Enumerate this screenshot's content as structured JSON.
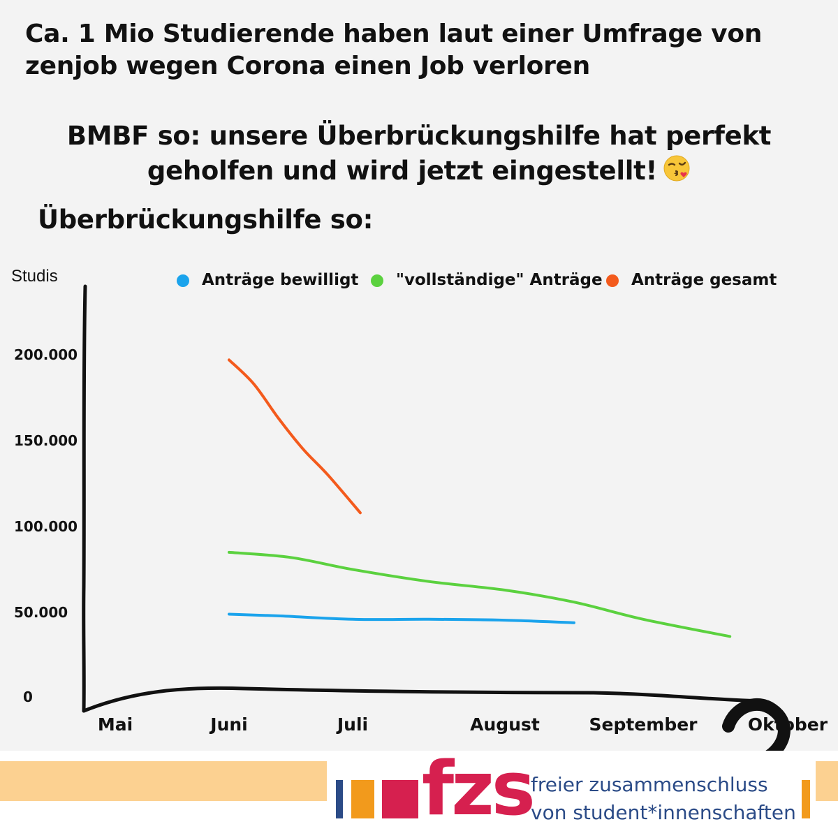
{
  "headline": "Ca. 1 Mio Studierende haben laut einer Umfrage von zenjob wegen Corona einen Job verloren",
  "bmbf_text": "BMBF so: unsere Überbrückungshilfe hat perfekt geholfen und wird jetzt eingestellt!",
  "hilfe_text": "Überbrückungshilfe so:",
  "emoji_name": "kissing-face-emoji",
  "question_mark": "?",
  "chart_data": {
    "type": "line",
    "ylabel": "Studis",
    "xlabel": "",
    "categories": [
      "Mai",
      "Juni",
      "Juli",
      "August",
      "September",
      "Oktober"
    ],
    "yticks": [
      {
        "value": 0,
        "label": "0"
      },
      {
        "value": 50000,
        "label": "50.000"
      },
      {
        "value": 100000,
        "label": "100.000"
      },
      {
        "value": 150000,
        "label": "150.000"
      },
      {
        "value": 200000,
        "label": "200.000"
      }
    ],
    "ylim": [
      0,
      220000
    ],
    "grid": false,
    "legend_position": "top",
    "series": [
      {
        "name": "Anträge bewilligt",
        "color": "#1aa3ec",
        "points": [
          [
            1.0,
            49000
          ],
          [
            1.4,
            48000
          ],
          [
            2.0,
            46000
          ],
          [
            2.5,
            46000
          ],
          [
            3.0,
            45500
          ],
          [
            3.5,
            44000
          ]
        ]
      },
      {
        "name": "\"vollständige\" Anträge",
        "color": "#5bd13f",
        "points": [
          [
            1.0,
            85000
          ],
          [
            1.5,
            82000
          ],
          [
            2.0,
            75000
          ],
          [
            2.5,
            68000
          ],
          [
            3.0,
            63000
          ],
          [
            3.5,
            56000
          ],
          [
            4.0,
            46000
          ],
          [
            4.6,
            36000
          ]
        ]
      },
      {
        "name": "Anträge gesamt",
        "color": "#f35a1c",
        "points": [
          [
            1.0,
            197000
          ],
          [
            1.2,
            183000
          ],
          [
            1.4,
            163000
          ],
          [
            1.6,
            145000
          ],
          [
            1.8,
            130000
          ],
          [
            2.05,
            108000
          ]
        ]
      }
    ]
  },
  "footer": {
    "logo_word": "fzs",
    "line1": "freier zusammenschluss",
    "line2": "von student*innenschaften",
    "colors": {
      "red": "#d6204f",
      "navy": "#2b4b87",
      "orange": "#f29a1c",
      "stripe": "#fcd191"
    }
  }
}
